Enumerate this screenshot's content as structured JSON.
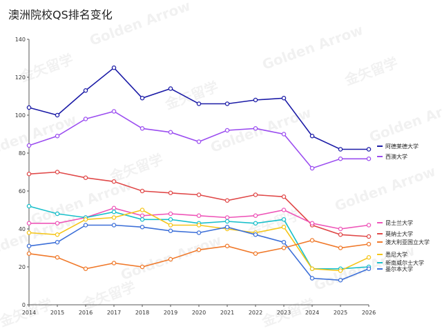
{
  "watermark": {
    "en": "Golden Arrow",
    "zh": "金矢留学"
  },
  "chart_data": {
    "type": "line",
    "title": "澳洲院校QS排名变化",
    "xlabel": "",
    "ylabel": "",
    "x": [
      "2014",
      "2015",
      "2016",
      "2017",
      "2018",
      "2019",
      "2020",
      "2021",
      "2022",
      "2023",
      "2024",
      "2025",
      "2026"
    ],
    "ylim": [
      0,
      140
    ],
    "yticks": [
      0,
      20,
      40,
      60,
      80,
      100,
      120,
      140
    ],
    "grid": false,
    "legend": "right",
    "series": [
      {
        "name": "阿德莱德大学",
        "color": "#1a1aa6",
        "values": [
          104,
          100,
          113,
          125,
          109,
          114,
          106,
          106,
          108,
          109,
          89,
          82,
          82
        ]
      },
      {
        "name": "西澳大学",
        "color": "#9b4df0",
        "values": [
          84,
          89,
          98,
          102,
          93,
          91,
          86,
          92,
          93,
          90,
          72,
          77,
          77
        ]
      },
      {
        "name": "莫纳士大学",
        "color": "#e04848",
        "values": [
          69,
          70,
          67,
          65,
          60,
          59,
          58,
          55,
          58,
          57,
          42,
          37,
          36
        ]
      },
      {
        "name": "昆士兰大学",
        "color": "#ee55b8",
        "values": [
          43,
          43,
          46,
          51,
          47,
          48,
          47,
          46,
          47,
          50,
          43,
          40,
          42
        ]
      },
      {
        "name": "新南威尔士大学",
        "color": "#17bfca",
        "values": [
          52,
          48,
          46,
          49,
          45,
          45,
          43,
          44,
          43,
          45,
          19,
          19,
          20
        ]
      },
      {
        "name": "悉尼大学",
        "color": "#f5c518",
        "values": [
          38,
          37,
          45,
          46,
          50,
          42,
          42,
          40,
          38,
          41,
          19,
          18,
          25
        ]
      },
      {
        "name": "墨尔本大学",
        "color": "#3c6fd8",
        "values": [
          31,
          33,
          42,
          42,
          41,
          39,
          38,
          41,
          37,
          33,
          14,
          13,
          19
        ]
      },
      {
        "name": "澳大利亚国立大学",
        "color": "#f0792a",
        "values": [
          27,
          25,
          19,
          22,
          20,
          24,
          29,
          31,
          27,
          30,
          34,
          30,
          32
        ]
      }
    ]
  }
}
